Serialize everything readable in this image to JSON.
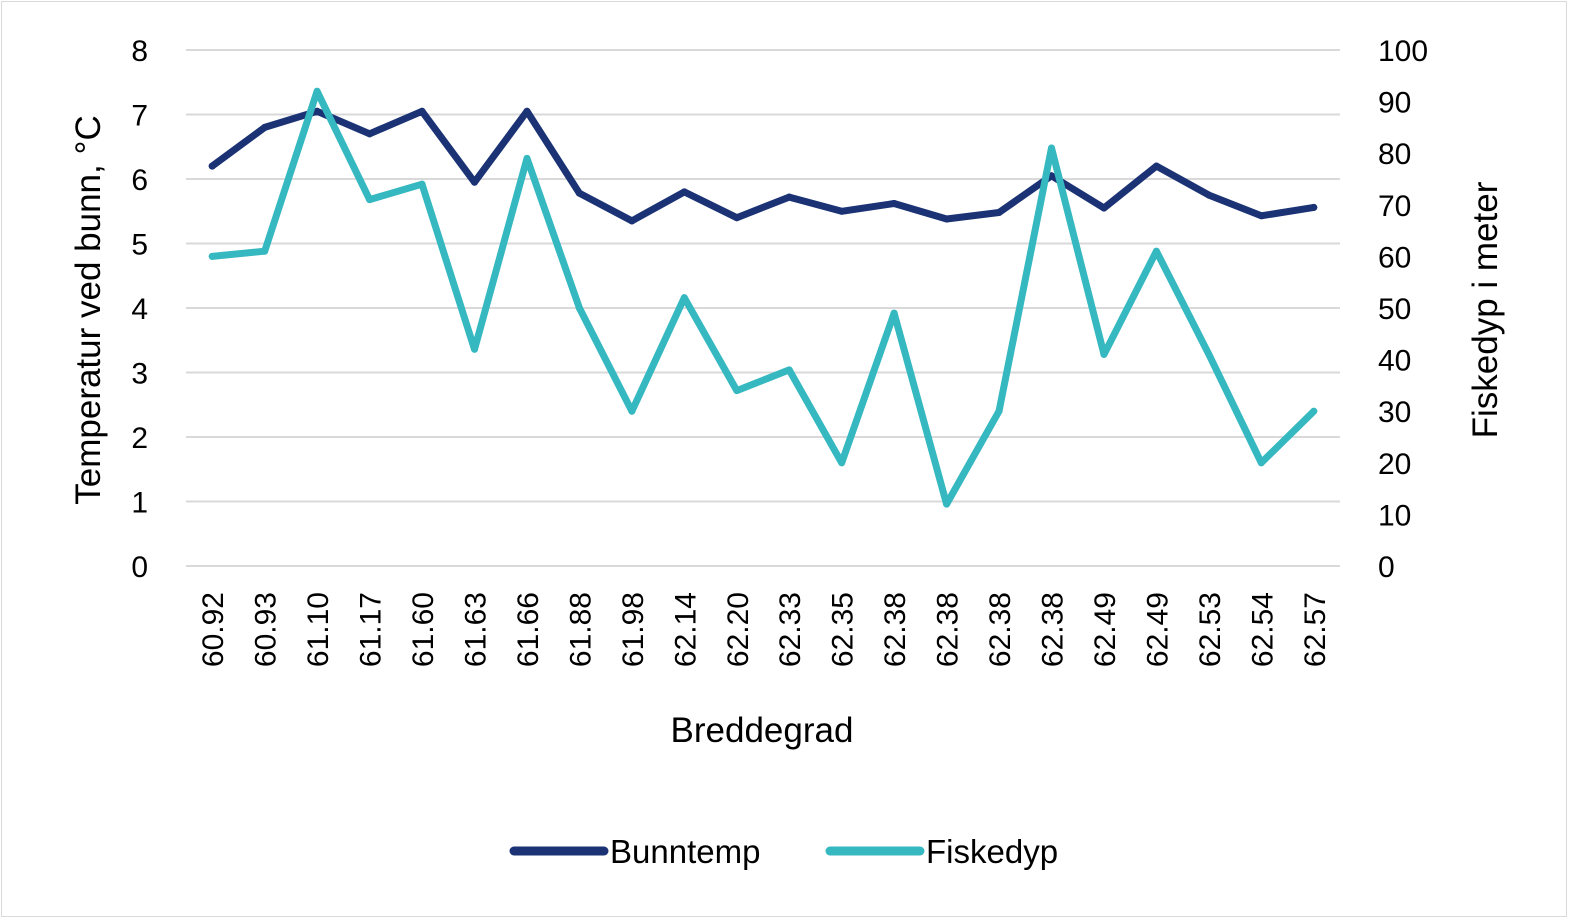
{
  "chart_data": {
    "type": "line",
    "title": "",
    "x": [
      "60.92",
      "60.93",
      "61.10",
      "61.17",
      "61.60",
      "61.63",
      "61.66",
      "61.88",
      "61.98",
      "62.14",
      "62.20",
      "62.33",
      "62.35",
      "62.38",
      "62.38",
      "62.38",
      "62.38",
      "62.49",
      "62.49",
      "62.53",
      "62.54",
      "62.57"
    ],
    "xlabel": "Breddegrad",
    "ylabel": "Temperatur ved bunn, °C",
    "y2label": "Fiskedyp i meter",
    "ylim": [
      0,
      8
    ],
    "y2lim": [
      0,
      100
    ],
    "yticks": [
      "0",
      "1",
      "2",
      "3",
      "4",
      "5",
      "6",
      "7",
      "8"
    ],
    "y2ticks": [
      "0",
      "10",
      "20",
      "30",
      "40",
      "50",
      "60",
      "70",
      "80",
      "90",
      "100"
    ],
    "grid": true,
    "legend_position": "bottom",
    "series": [
      {
        "name": "Bunntemp",
        "axis": "left",
        "color": "#1b3375",
        "values": [
          6.2,
          6.8,
          7.05,
          6.7,
          7.05,
          5.95,
          7.05,
          5.78,
          5.35,
          5.8,
          5.4,
          5.72,
          5.5,
          5.62,
          5.38,
          5.48,
          6.05,
          5.55,
          6.2,
          5.75,
          5.43,
          5.56
        ]
      },
      {
        "name": "Fiskedyp",
        "axis": "right",
        "color": "#35b8c0",
        "values": [
          60,
          61,
          92,
          71,
          74,
          42,
          79,
          50,
          30,
          52,
          34,
          38,
          20,
          49,
          12,
          30,
          81,
          41,
          61,
          41,
          20,
          30
        ]
      }
    ]
  }
}
